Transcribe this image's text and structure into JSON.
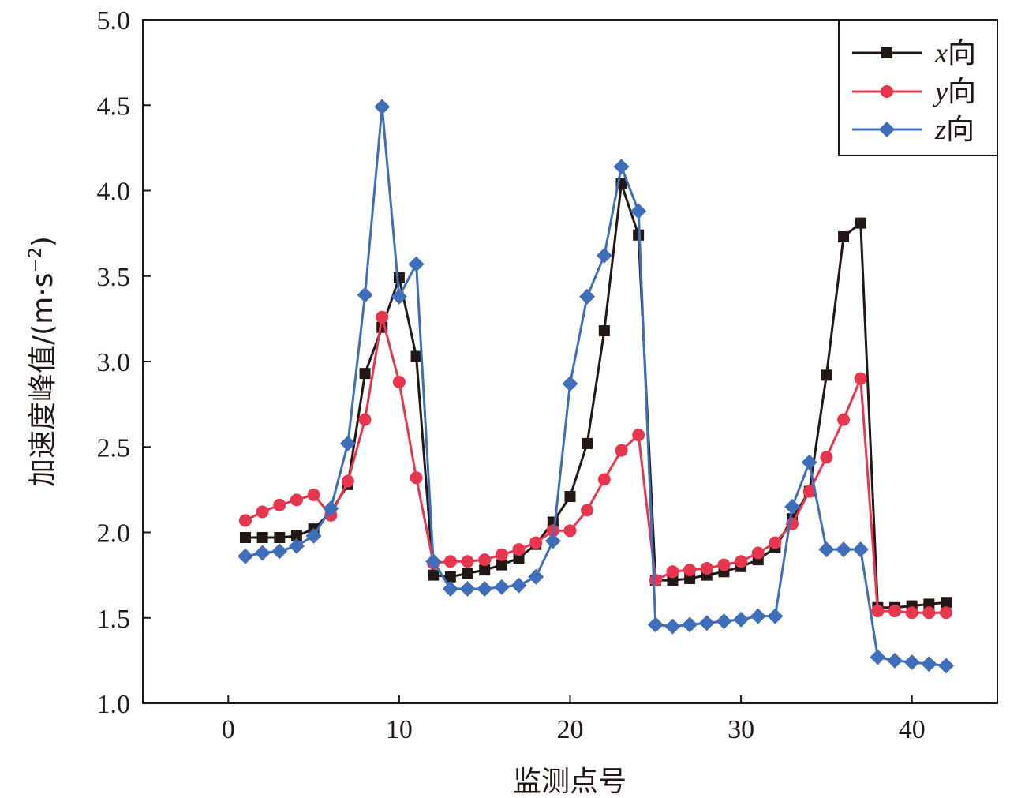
{
  "chart_data": {
    "type": "line",
    "xlabel": "监测点号",
    "ylabel_main": "加速度峰值/",
    "ylabel_unit_base": "(m·s",
    "ylabel_unit_exp": "−2",
    "ylabel_unit_close": ")",
    "xlim": [
      -5,
      45
    ],
    "ylim": [
      1.0,
      5.0
    ],
    "xticks": [
      0,
      10,
      20,
      30,
      40
    ],
    "xtick_labels": [
      "0",
      "10",
      "20",
      "30",
      "40"
    ],
    "yticks": [
      1.0,
      1.5,
      2.0,
      2.5,
      3.0,
      3.5,
      4.0,
      4.5,
      5.0
    ],
    "ytick_labels": [
      "1.0",
      "1.5",
      "2.0",
      "2.5",
      "3.0",
      "3.5",
      "4.0",
      "4.5",
      "5.0"
    ],
    "grid": false,
    "legend_position": "top-right",
    "x": [
      1,
      2,
      3,
      4,
      5,
      6,
      7,
      8,
      9,
      10,
      11,
      12,
      13,
      14,
      15,
      16,
      17,
      18,
      19,
      20,
      21,
      22,
      23,
      24,
      25,
      26,
      27,
      28,
      29,
      30,
      31,
      32,
      33,
      34,
      35,
      36,
      37,
      38,
      39,
      40,
      41,
      42
    ],
    "series": [
      {
        "var": "x",
        "suffix": "向",
        "color": "#231815",
        "marker": "square",
        "values": [
          1.97,
          1.97,
          1.97,
          1.98,
          2.02,
          2.12,
          2.28,
          2.93,
          3.2,
          3.49,
          3.03,
          1.75,
          1.74,
          1.76,
          1.78,
          1.81,
          1.85,
          1.93,
          2.06,
          2.21,
          2.52,
          3.18,
          4.04,
          3.74,
          1.72,
          1.72,
          1.73,
          1.75,
          1.77,
          1.8,
          1.84,
          1.91,
          2.08,
          2.24,
          2.92,
          3.73,
          3.81,
          1.56,
          1.56,
          1.57,
          1.58,
          1.59
        ]
      },
      {
        "var": "y",
        "suffix": "向",
        "color": "#e8364f",
        "marker": "circle",
        "values": [
          2.07,
          2.12,
          2.16,
          2.19,
          2.22,
          2.1,
          2.3,
          2.66,
          3.26,
          2.88,
          2.32,
          1.82,
          1.83,
          1.83,
          1.84,
          1.87,
          1.9,
          1.94,
          2.01,
          2.01,
          2.13,
          2.31,
          2.48,
          2.57,
          1.72,
          1.77,
          1.78,
          1.79,
          1.81,
          1.83,
          1.88,
          1.94,
          2.05,
          2.24,
          2.44,
          2.66,
          2.9,
          1.54,
          1.54,
          1.53,
          1.53,
          1.53
        ]
      },
      {
        "var": "z",
        "suffix": "向",
        "color": "#3f6fba",
        "marker": "diamond",
        "values": [
          1.86,
          1.88,
          1.89,
          1.92,
          1.98,
          2.14,
          2.52,
          3.39,
          4.49,
          3.38,
          3.57,
          1.83,
          1.67,
          1.67,
          1.67,
          1.68,
          1.69,
          1.74,
          1.95,
          2.87,
          3.38,
          3.62,
          4.14,
          3.88,
          1.46,
          1.45,
          1.46,
          1.47,
          1.48,
          1.49,
          1.51,
          1.51,
          2.15,
          2.41,
          1.9,
          1.9,
          1.9,
          1.27,
          1.25,
          1.24,
          1.23,
          1.22
        ]
      }
    ]
  }
}
